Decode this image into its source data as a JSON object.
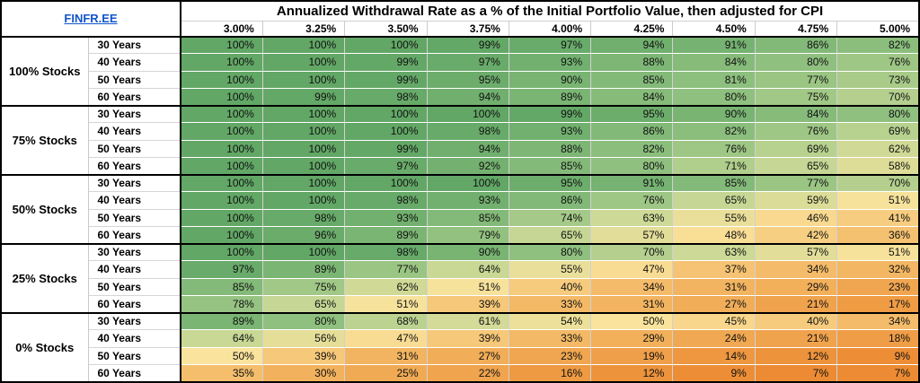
{
  "header": {
    "logo": "FINFR.EE",
    "title": "Annualized Withdrawal Rate as a % of the Initial Portfolio Value, then adjusted for CPI"
  },
  "chart_data": {
    "type": "heatmap",
    "title": "Annualized Withdrawal Rate as a % of the Initial Portfolio Value, then adjusted for CPI",
    "value_unit": "%",
    "value_range": [
      7,
      100
    ],
    "columns": [
      "3.00%",
      "3.25%",
      "3.50%",
      "3.75%",
      "4.00%",
      "4.25%",
      "4.50%",
      "4.75%",
      "5.00%"
    ],
    "row_groups": [
      {
        "label": "100% Stocks",
        "rows": [
          {
            "label": "30 Years",
            "values": [
              100,
              100,
              100,
              99,
              97,
              94,
              91,
              86,
              82
            ]
          },
          {
            "label": "40 Years",
            "values": [
              100,
              100,
              99,
              97,
              93,
              88,
              84,
              80,
              76
            ]
          },
          {
            "label": "50 Years",
            "values": [
              100,
              100,
              99,
              95,
              90,
              85,
              81,
              77,
              73
            ]
          },
          {
            "label": "60 Years",
            "values": [
              100,
              99,
              98,
              94,
              89,
              84,
              80,
              75,
              70
            ]
          }
        ]
      },
      {
        "label": "75% Stocks",
        "rows": [
          {
            "label": "30 Years",
            "values": [
              100,
              100,
              100,
              100,
              99,
              95,
              90,
              84,
              80
            ]
          },
          {
            "label": "40 Years",
            "values": [
              100,
              100,
              100,
              98,
              93,
              86,
              82,
              76,
              69
            ]
          },
          {
            "label": "50 Years",
            "values": [
              100,
              100,
              99,
              94,
              88,
              82,
              76,
              69,
              62
            ]
          },
          {
            "label": "60 Years",
            "values": [
              100,
              100,
              97,
              92,
              85,
              80,
              71,
              65,
              58
            ]
          }
        ]
      },
      {
        "label": "50% Stocks",
        "rows": [
          {
            "label": "30 Years",
            "values": [
              100,
              100,
              100,
              100,
              95,
              91,
              85,
              77,
              70
            ]
          },
          {
            "label": "40 Years",
            "values": [
              100,
              100,
              98,
              93,
              86,
              76,
              65,
              59,
              51
            ]
          },
          {
            "label": "50 Years",
            "values": [
              100,
              98,
              93,
              85,
              74,
              63,
              55,
              46,
              41
            ]
          },
          {
            "label": "60 Years",
            "values": [
              100,
              96,
              89,
              79,
              65,
              57,
              48,
              42,
              36
            ]
          }
        ]
      },
      {
        "label": "25% Stocks",
        "rows": [
          {
            "label": "30 Years",
            "values": [
              100,
              100,
              98,
              90,
              80,
              70,
              63,
              57,
              51
            ]
          },
          {
            "label": "40 Years",
            "values": [
              97,
              89,
              77,
              64,
              55,
              47,
              37,
              34,
              32
            ]
          },
          {
            "label": "50 Years",
            "values": [
              85,
              75,
              62,
              51,
              40,
              34,
              31,
              29,
              23
            ]
          },
          {
            "label": "60 Years",
            "values": [
              78,
              65,
              51,
              39,
              33,
              31,
              27,
              21,
              17
            ]
          }
        ]
      },
      {
        "label": "0% Stocks",
        "rows": [
          {
            "label": "30 Years",
            "values": [
              89,
              80,
              68,
              61,
              54,
              50,
              45,
              40,
              34
            ]
          },
          {
            "label": "40 Years",
            "values": [
              64,
              56,
              47,
              39,
              33,
              29,
              24,
              21,
              18
            ]
          },
          {
            "label": "50 Years",
            "values": [
              50,
              39,
              31,
              27,
              23,
              19,
              14,
              12,
              9
            ]
          },
          {
            "label": "60 Years",
            "values": [
              35,
              30,
              25,
              22,
              16,
              12,
              9,
              7,
              7
            ]
          }
        ]
      }
    ],
    "color_scale": {
      "stops": [
        {
          "value": 100,
          "color": "#62a766"
        },
        {
          "value": 80,
          "color": "#8fc07f"
        },
        {
          "value": 65,
          "color": "#c6d795"
        },
        {
          "value": 50,
          "color": "#fae39c"
        },
        {
          "value": 30,
          "color": "#f2b25d"
        },
        {
          "value": 7,
          "color": "#ec8b33"
        }
      ]
    }
  }
}
